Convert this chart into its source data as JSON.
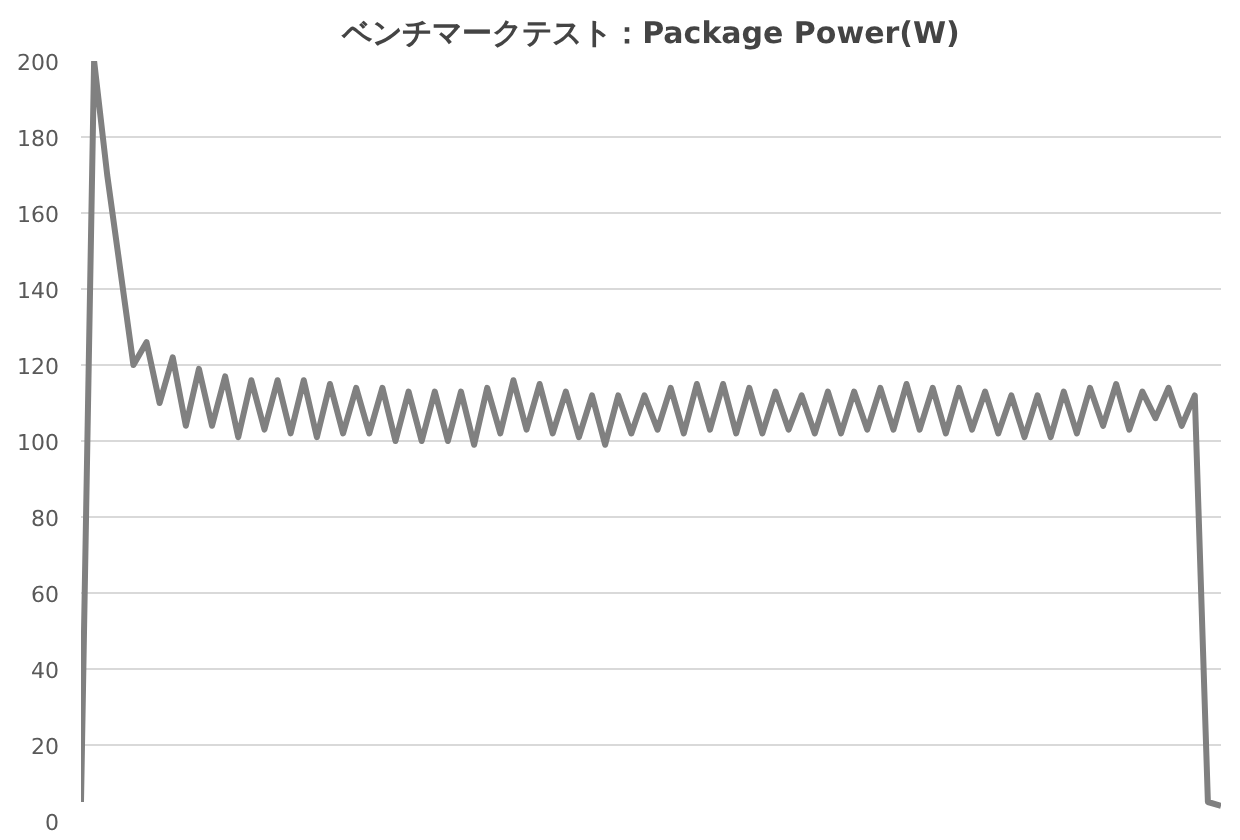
{
  "chart_data": {
    "type": "line",
    "title": "ベンチマークテスト：Package Power(W)",
    "categories": [
      null,
      null,
      null,
      null,
      null,
      null,
      null,
      null,
      null,
      null,
      null,
      null,
      null,
      null,
      null,
      null,
      null,
      null,
      null,
      null,
      null,
      null,
      null,
      null,
      null,
      null,
      null,
      null,
      null,
      null,
      null,
      null,
      null,
      null,
      null,
      null,
      null,
      null,
      null,
      null,
      null,
      null,
      null,
      null,
      null,
      null,
      null,
      null,
      null,
      null,
      null,
      null,
      null,
      null,
      null,
      null,
      null,
      null,
      null,
      null,
      null,
      null,
      null,
      null,
      null,
      null,
      null,
      null,
      null,
      null,
      null,
      null,
      null,
      null,
      null,
      null,
      null,
      null,
      null,
      null,
      null,
      null,
      null,
      null,
      null,
      null,
      null,
      null
    ],
    "series": [
      {
        "color": "#808080",
        "values": [
          5,
          200,
          170,
          145,
          120,
          126,
          110,
          122,
          104,
          119,
          104,
          117,
          101,
          116,
          103,
          116,
          102,
          116,
          101,
          115,
          102,
          114,
          102,
          114,
          100,
          113,
          100,
          113,
          100,
          113,
          99,
          114,
          102,
          116,
          103,
          115,
          102,
          113,
          101,
          112,
          99,
          112,
          102,
          112,
          103,
          114,
          102,
          115,
          103,
          115,
          102,
          114,
          102,
          113,
          103,
          112,
          102,
          113,
          102,
          113,
          103,
          114,
          103,
          115,
          103,
          114,
          102,
          114,
          103,
          113,
          102,
          112,
          101,
          112,
          101,
          113,
          102,
          114,
          104,
          115,
          103,
          113,
          106,
          114,
          104,
          112,
          5,
          4
        ]
      }
    ],
    "ylim": [
      0,
      200
    ],
    "yticks": [
      0,
      20,
      40,
      60,
      80,
      100,
      120,
      140,
      160,
      180,
      200
    ],
    "grid": "y",
    "tick_labels": "y",
    "marker": "none",
    "line_style": "solid"
  }
}
